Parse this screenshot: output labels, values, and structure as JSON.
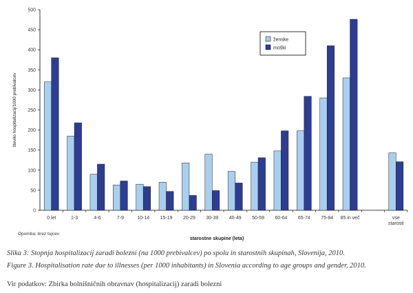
{
  "chart_data": {
    "type": "bar",
    "categories": [
      "0 let",
      "1-3",
      "4-6",
      "7-9",
      "10-14",
      "15-19",
      "20-29",
      "30-39",
      "40-49",
      "50-59",
      "60-64",
      "65-74",
      "75-84",
      "85 in več",
      "",
      "vse\nstarosti"
    ],
    "series": [
      {
        "name": "ženske",
        "color": "#a9cfee",
        "values": [
          320,
          185,
          90,
          63,
          65,
          70,
          118,
          140,
          97,
          120,
          148,
          198,
          280,
          330,
          null,
          143
        ]
      },
      {
        "name": "moški",
        "color": "#2e3d94",
        "values": [
          380,
          218,
          115,
          73,
          59,
          47,
          37,
          49,
          68,
          131,
          198,
          284,
          410,
          476,
          null,
          121
        ]
      }
    ],
    "ylabel": "število hospitalizacij/1000 prebivalcev",
    "xlabel": "starostne skupine (leta)",
    "ylim": [
      0,
      500
    ],
    "yticks": [
      0,
      50,
      100,
      150,
      200,
      250,
      300,
      350,
      400,
      450,
      500
    ],
    "grid": false,
    "legend": "top-right"
  },
  "note": "Opomba: brez tujcev",
  "caption_si": "Slika 3: Stopnja hospitalizacij zaradi bolezni (na 1000 prebivalcev) po spolu in starostnih skupinah, Slovenija, 2010.",
  "caption_en": "Figure 3. Hospitalisation rate due to illnesses (per 1000 inhabitants) in Slovenia according to age groups and gender, 2010.",
  "source": "Vir podatkov: Zbirka bolnišničnih obravnav (hospitalizacij) zaradi bolezni"
}
